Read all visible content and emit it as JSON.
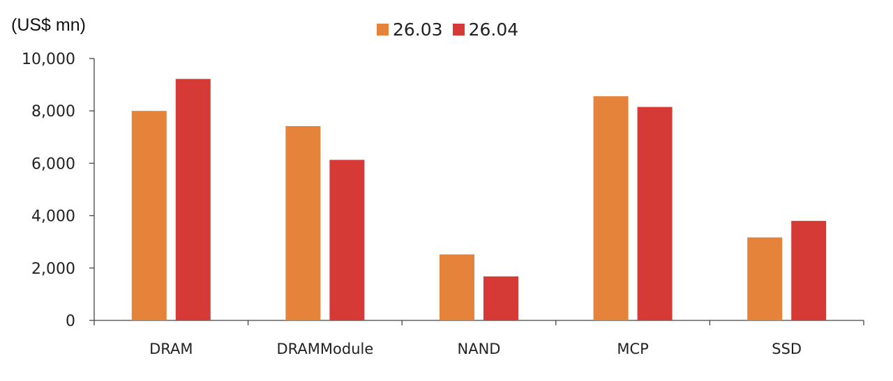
{
  "chart_data": {
    "type": "bar",
    "unit_label": "(US$ mn)",
    "categories": [
      "DRAM",
      "DRAMModule",
      "NAND",
      "MCP",
      "SSD"
    ],
    "series": [
      {
        "name": "26.03",
        "color": "#E5833A",
        "values": [
          8000,
          7420,
          2520,
          8560,
          3170
        ]
      },
      {
        "name": "26.04",
        "color": "#D63A36",
        "values": [
          9220,
          6130,
          1680,
          8150,
          3800
        ]
      }
    ],
    "y_ticks": [
      "0",
      "2,000",
      "4,000",
      "6,000",
      "8,000",
      "10,000"
    ],
    "ylim": [
      0,
      10000
    ],
    "grid": false,
    "legend_position": "top-center"
  }
}
